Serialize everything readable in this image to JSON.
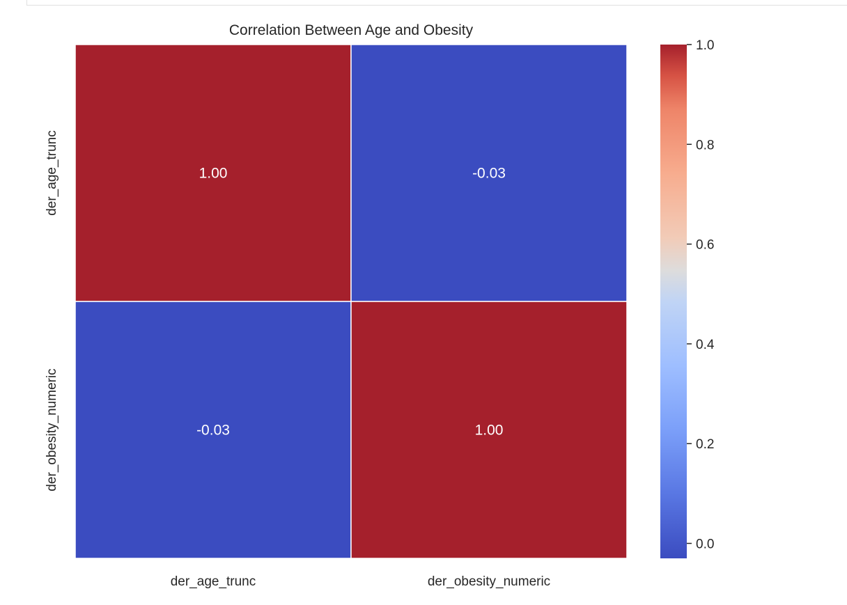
{
  "chart_data": {
    "type": "heatmap",
    "title": "Correlation Between Age and Obesity",
    "x_categories": [
      "der_age_trunc",
      "der_obesity_numeric"
    ],
    "y_categories": [
      "der_age_trunc",
      "der_obesity_numeric"
    ],
    "values": [
      [
        1.0,
        -0.03
      ],
      [
        -0.03,
        1.0
      ]
    ],
    "annotations": [
      [
        "1.00",
        "-0.03"
      ],
      [
        "-0.03",
        "1.00"
      ]
    ],
    "colormap": "coolwarm",
    "color_range": [
      -0.03,
      1.0
    ],
    "colorbar_ticks": [
      {
        "value": 0.0,
        "label": "0.0"
      },
      {
        "value": 0.2,
        "label": "0.2"
      },
      {
        "value": 0.4,
        "label": "0.4"
      },
      {
        "value": 0.6,
        "label": "0.6"
      },
      {
        "value": 0.8,
        "label": "0.8"
      },
      {
        "value": 1.0,
        "label": "1.0"
      }
    ],
    "colors": {
      "low": "#3b4cc0",
      "high": "#a5202c",
      "annotation_text": "#ffffff",
      "label_text": "#262626"
    },
    "xlabel": "",
    "ylabel": "",
    "grid": false,
    "legend": "colorbar-right"
  }
}
